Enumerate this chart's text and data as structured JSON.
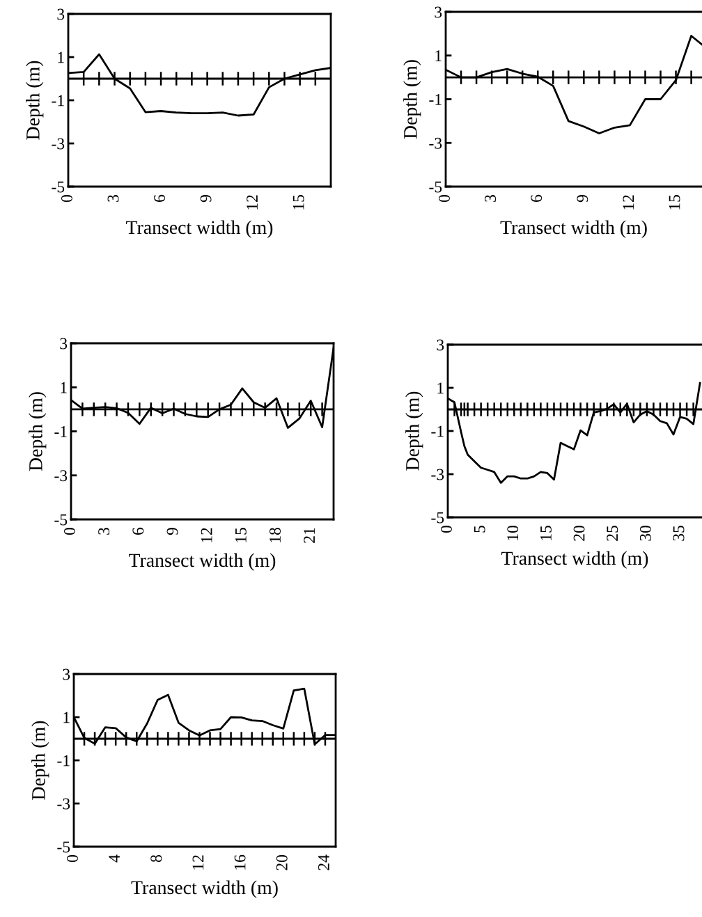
{
  "chart_data": [
    {
      "type": "line",
      "xlabel": "Transect width (m)",
      "ylabel": "Depth (m)",
      "xlim": [
        0,
        17
      ],
      "ylim": [
        -5,
        3
      ],
      "xticks": [
        0,
        3,
        6,
        9,
        12,
        15
      ],
      "yticks": [
        -5,
        -3,
        -1,
        1,
        3
      ],
      "grid": false,
      "legend": false,
      "ref_lines": [
        {
          "axis": "y",
          "value": 0,
          "color": "#000000"
        }
      ],
      "series": [
        {
          "color": "#000000",
          "x": [
            0,
            1,
            2,
            3,
            4,
            5,
            6,
            7,
            8,
            9,
            10,
            11,
            12,
            13,
            14,
            15,
            16,
            17
          ],
          "values": [
            0.26,
            0.31,
            1.13,
            0,
            -0.45,
            -1.55,
            -1.5,
            -1.57,
            -1.6,
            -1.6,
            -1.57,
            -1.71,
            -1.66,
            -0.4,
            0,
            0.2,
            0.39,
            0.5
          ]
        }
      ]
    },
    {
      "type": "line",
      "xlabel": "Transect width (m)",
      "ylabel": "Depth (m)",
      "xlim": [
        0,
        16.7
      ],
      "ylim": [
        -5,
        3
      ],
      "xticks": [
        0,
        3,
        6,
        9,
        12,
        15
      ],
      "yticks": [
        -5,
        -3,
        -1,
        1,
        3
      ],
      "grid": false,
      "legend": false,
      "ref_lines": [
        {
          "axis": "y",
          "value": 0,
          "color": "#000000"
        }
      ],
      "series": [
        {
          "color": "#000000",
          "x": [
            0,
            1,
            2,
            3,
            4,
            5,
            6,
            7,
            8,
            9,
            10,
            11,
            12,
            13,
            14,
            15,
            16,
            16.7
          ],
          "values": [
            0.35,
            0,
            0,
            0.24,
            0.38,
            0.17,
            0.03,
            -0.39,
            -2.0,
            -2.25,
            -2.56,
            -2.3,
            -2.19,
            -1.0,
            -1.0,
            -0.13,
            1.9,
            1.5
          ]
        }
      ]
    },
    {
      "type": "line",
      "xlabel": "Transect width (m)",
      "ylabel": "Depth (m)",
      "xlim": [
        0,
        23
      ],
      "ylim": [
        -5,
        3
      ],
      "xticks": [
        0,
        3,
        6,
        9,
        12,
        15,
        18,
        21
      ],
      "yticks": [
        -5,
        -3,
        -1,
        1,
        3
      ],
      "grid": false,
      "legend": false,
      "ref_lines": [
        {
          "axis": "y",
          "value": 0,
          "color": "#000000"
        }
      ],
      "series": [
        {
          "color": "#000000",
          "x": [
            0,
            1,
            2,
            3,
            4,
            5,
            6,
            7,
            8,
            9,
            10,
            11,
            12,
            13,
            14,
            15,
            16,
            17,
            18,
            19,
            20,
            21,
            22,
            23
          ],
          "values": [
            0.42,
            0.03,
            0.07,
            0.1,
            0.05,
            -0.16,
            -0.66,
            0.07,
            -0.18,
            0.03,
            -0.21,
            -0.32,
            -0.35,
            0,
            0.21,
            0.95,
            0.32,
            0.07,
            0.5,
            -0.84,
            -0.42,
            0.39,
            -0.81,
            2.8
          ]
        }
      ]
    },
    {
      "type": "line",
      "xlabel": "Transect width (m)",
      "ylabel": "Depth (m)",
      "xlim": [
        0,
        38.3
      ],
      "ylim": [
        -5,
        3
      ],
      "xticks": [
        0,
        5,
        10,
        15,
        20,
        25,
        30,
        35
      ],
      "yticks": [
        -5,
        -3,
        -1,
        1,
        3
      ],
      "grid": false,
      "legend": false,
      "ref_lines": [
        {
          "axis": "y",
          "value": 0,
          "color": "#000000"
        }
      ],
      "series": [
        {
          "color": "#000000",
          "x": [
            0,
            1,
            2,
            2.5,
            3,
            4,
            5,
            6,
            7,
            8,
            9,
            10,
            11,
            12,
            13,
            14,
            15,
            16,
            17,
            18,
            19,
            20,
            21,
            22,
            23,
            24,
            25,
            26,
            27,
            28,
            29,
            30,
            31,
            32,
            33,
            34,
            35,
            36,
            37,
            38
          ],
          "values": [
            0.51,
            0.33,
            -1.05,
            -1.7,
            -2.1,
            -2.4,
            -2.7,
            -2.8,
            -2.9,
            -3.4,
            -3.1,
            -3.1,
            -3.2,
            -3.2,
            -3.1,
            -2.9,
            -2.95,
            -3.25,
            -1.55,
            -1.7,
            -1.85,
            -0.97,
            -1.2,
            -0.14,
            -0.08,
            0.03,
            0.24,
            -0.14,
            0.26,
            -0.6,
            -0.24,
            -0.08,
            -0.24,
            -0.54,
            -0.64,
            -1.16,
            -0.35,
            -0.43,
            -0.68,
            1.22
          ]
        }
      ]
    },
    {
      "type": "line",
      "xlabel": "Transect width (m)",
      "ylabel": "Depth (m)",
      "xlim": [
        0,
        25
      ],
      "ylim": [
        -5,
        3
      ],
      "xticks": [
        0,
        4,
        8,
        12,
        16,
        20,
        24
      ],
      "yticks": [
        -5,
        -3,
        -1,
        1,
        3
      ],
      "grid": false,
      "legend": false,
      "ref_lines": [
        {
          "axis": "y",
          "value": 0,
          "color": "#000000"
        }
      ],
      "series": [
        {
          "color": "#000000",
          "x": [
            0,
            1,
            2,
            3,
            4,
            5,
            6,
            7,
            8,
            9,
            10,
            11,
            12,
            13,
            14,
            15,
            16,
            17,
            18,
            19,
            20,
            21,
            22,
            23,
            24,
            25
          ],
          "values": [
            1.0,
            0.04,
            -0.23,
            0.53,
            0.49,
            0.06,
            -0.12,
            0.71,
            1.8,
            2.03,
            0.74,
            0.39,
            0.15,
            0.39,
            0.45,
            1.0,
            0.99,
            0.85,
            0.82,
            0.63,
            0.47,
            2.24,
            2.32,
            -0.26,
            0.17,
            0.17
          ]
        }
      ]
    }
  ]
}
